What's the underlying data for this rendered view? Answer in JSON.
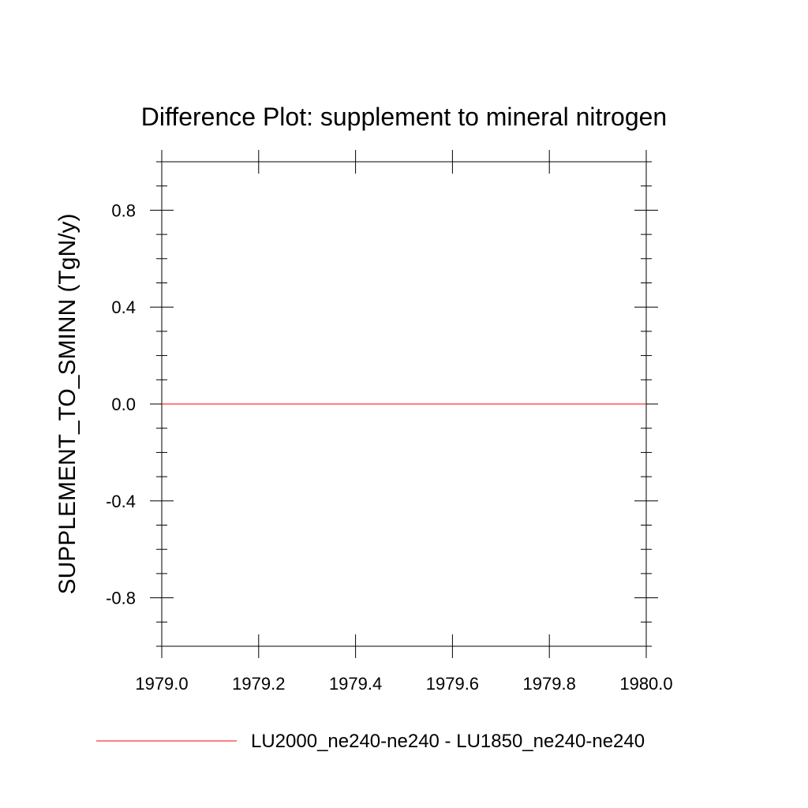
{
  "chart_data": {
    "type": "line",
    "title": "Difference Plot: supplement to mineral nitrogen",
    "xlabel": "",
    "ylabel": "SUPPLEMENT_TO_SMINN  (TgN/y)",
    "xlim": [
      1979.0,
      1980.0
    ],
    "ylim": [
      -1.0,
      1.0
    ],
    "x_ticks": [
      1979.0,
      1979.2,
      1979.4,
      1979.6,
      1979.8,
      1980.0
    ],
    "x_tick_labels": [
      "1979.0",
      "1979.2",
      "1979.4",
      "1979.6",
      "1979.8",
      "1980.0"
    ],
    "x_minor_step": 0.2,
    "y_ticks": [
      -0.8,
      -0.4,
      0.0,
      0.4,
      0.8
    ],
    "y_tick_labels": [
      "-0.8",
      "-0.4",
      "0.0",
      "0.4",
      "0.8"
    ],
    "y_minor_step": 0.1,
    "grid": false,
    "legend_position": "bottom",
    "series": [
      {
        "name": "LU2000_ne240-ne240 - LU1850_ne240-ne240",
        "color": "#ff0000",
        "x": [
          1979.0,
          1980.0
        ],
        "y": [
          0.0,
          0.0
        ]
      }
    ]
  }
}
